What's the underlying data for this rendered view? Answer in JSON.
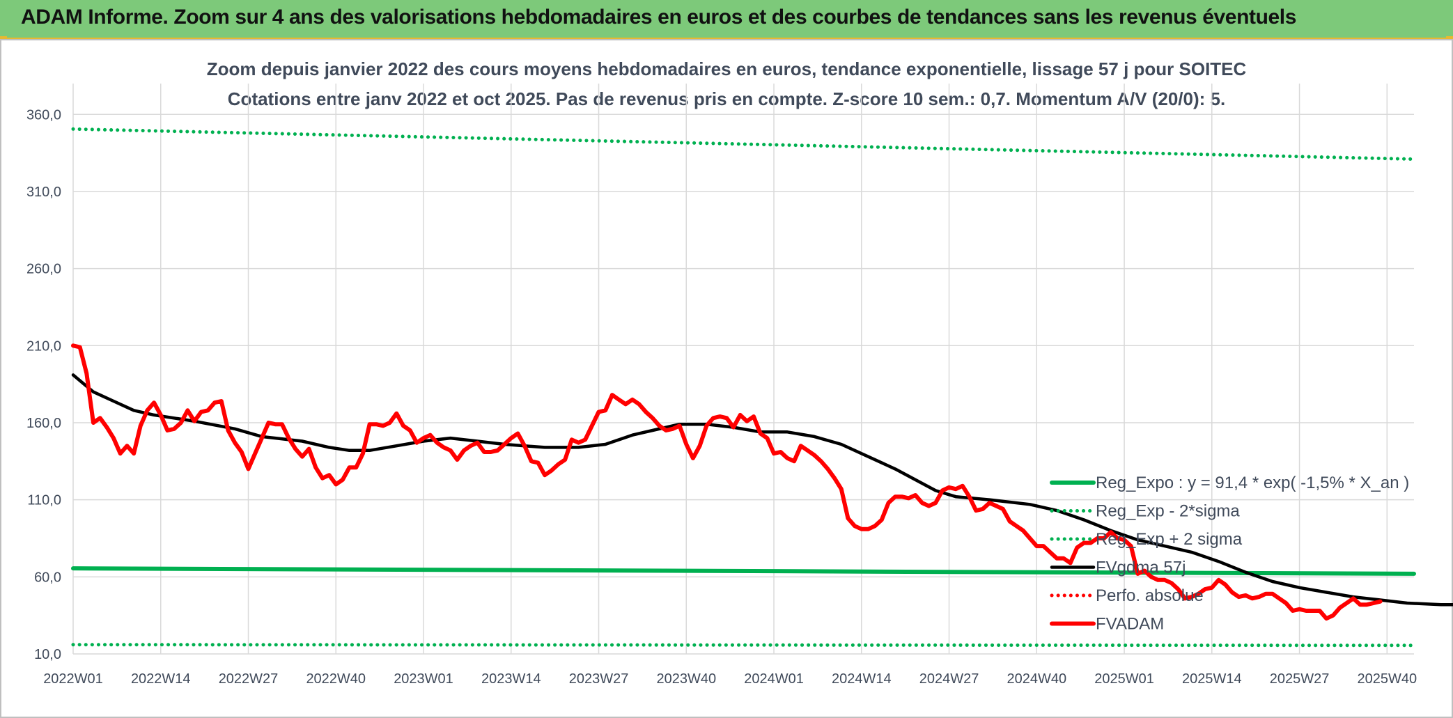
{
  "banner": {
    "title": "ADAM Informe. Zoom sur 4 ans des valorisations hebdomadaires en euros et des courbes de tendances sans les revenus éventuels"
  },
  "colors": {
    "banner": "#7dc97a",
    "accent": "#e8b931",
    "reg_expo": "#00b050",
    "fvgdma": "#000000",
    "fvadam": "#ff0000",
    "perfo": "#ff0000",
    "grid": "#d9d9d9",
    "text": "#404a5a"
  },
  "chart_data": {
    "type": "line",
    "title": "Zoom depuis janvier 2022 des cours moyens hebdomadaires en euros, tendance exponentielle, lissage 57 j pour SOITEC",
    "subtitle": "Cotations entre janv 2022 et oct 2025. Pas de revenus pris en compte. Z-score 10 sem.: 0,7. Momentum A/V (20/0): 5.",
    "xlabel": "",
    "ylabel": "",
    "ylim": [
      10,
      380
    ],
    "y_ticks": [
      "10,0",
      "60,0",
      "110,0",
      "160,0",
      "210,0",
      "260,0",
      "310,0",
      "360,0"
    ],
    "y_tick_values": [
      10,
      60,
      110,
      160,
      210,
      260,
      310,
      360
    ],
    "x_count": 200,
    "x_tick_labels": [
      "2022W01",
      "2022W14",
      "2022W27",
      "2022W40",
      "2023W01",
      "2023W14",
      "2023W27",
      "2023W40",
      "2024W01",
      "2024W14",
      "2024W27",
      "2024W40",
      "2025W01",
      "2025W14",
      "2025W27",
      "2025W40"
    ],
    "x_tick_indices": [
      0,
      13,
      26,
      39,
      52,
      65,
      78,
      91,
      104,
      117,
      130,
      143,
      156,
      169,
      182,
      195
    ],
    "legend_position": "bottom-right",
    "grid": true,
    "series": [
      {
        "name": "Reg_Expo : y = 91,4 * exp( -1,5% *  X_an )",
        "style": "solid-thick",
        "color": "#00b050",
        "points": [
          [
            0,
            65.5
          ],
          [
            199,
            62
          ]
        ]
      },
      {
        "name": "Reg_Exp - 2*sigma",
        "style": "dotted",
        "color": "#00b050",
        "points": [
          [
            0,
            16
          ],
          [
            199,
            15.5
          ]
        ]
      },
      {
        "name": "Reg_Exp + 2 sigma",
        "style": "dotted",
        "color": "#00b050",
        "points": [
          [
            0,
            350.5
          ],
          [
            199,
            331
          ]
        ]
      },
      {
        "name": "FVgdma 57j",
        "style": "solid",
        "color": "#000000",
        "points": [
          [
            0,
            191
          ],
          [
            3,
            180
          ],
          [
            6,
            174
          ],
          [
            9,
            168
          ],
          [
            12,
            165
          ],
          [
            18,
            161
          ],
          [
            24,
            156
          ],
          [
            28,
            151
          ],
          [
            34,
            148
          ],
          [
            38,
            144
          ],
          [
            41,
            142
          ],
          [
            44,
            142
          ],
          [
            48,
            145
          ],
          [
            52,
            148
          ],
          [
            56,
            150
          ],
          [
            60,
            148
          ],
          [
            64,
            146
          ],
          [
            70,
            144
          ],
          [
            75,
            144
          ],
          [
            79,
            146
          ],
          [
            83,
            152
          ],
          [
            86,
            155
          ],
          [
            90,
            159
          ],
          [
            94,
            159
          ],
          [
            98,
            157
          ],
          [
            102,
            154
          ],
          [
            106,
            154
          ],
          [
            110,
            151
          ],
          [
            114,
            146
          ],
          [
            118,
            138
          ],
          [
            122,
            130
          ],
          [
            125,
            123
          ],
          [
            128,
            116
          ],
          [
            131,
            112
          ],
          [
            136,
            110
          ],
          [
            142,
            107
          ],
          [
            146,
            103
          ],
          [
            150,
            97
          ],
          [
            154,
            90
          ],
          [
            158,
            84
          ],
          [
            162,
            80
          ],
          [
            166,
            76
          ],
          [
            170,
            70
          ],
          [
            174,
            63
          ],
          [
            178,
            57
          ],
          [
            182,
            53
          ],
          [
            186,
            50
          ],
          [
            190,
            47
          ],
          [
            194,
            45
          ],
          [
            198,
            43
          ],
          [
            203,
            42
          ],
          [
            206,
            42
          ]
        ]
      },
      {
        "name": "Perfo. absolue",
        "style": "dotted",
        "color": "#ff0000",
        "points": []
      },
      {
        "name": "FVADAM",
        "style": "solid-thick",
        "color": "#ff0000",
        "points": [
          [
            0,
            210
          ],
          [
            1,
            209
          ],
          [
            2,
            192
          ],
          [
            3,
            160
          ],
          [
            4,
            163
          ],
          [
            5,
            157
          ],
          [
            6,
            150
          ],
          [
            7,
            140
          ],
          [
            8,
            145
          ],
          [
            9,
            140
          ],
          [
            10,
            158
          ],
          [
            11,
            168
          ],
          [
            12,
            173
          ],
          [
            13,
            165
          ],
          [
            14,
            155
          ],
          [
            15,
            156
          ],
          [
            16,
            160
          ],
          [
            17,
            168
          ],
          [
            18,
            161
          ],
          [
            19,
            167
          ],
          [
            20,
            168
          ],
          [
            21,
            173
          ],
          [
            22,
            174
          ],
          [
            23,
            155
          ],
          [
            24,
            147
          ],
          [
            25,
            141
          ],
          [
            26,
            130
          ],
          [
            27,
            140
          ],
          [
            28,
            150
          ],
          [
            29,
            160
          ],
          [
            30,
            159
          ],
          [
            31,
            159
          ],
          [
            32,
            150
          ],
          [
            33,
            143
          ],
          [
            34,
            138
          ],
          [
            35,
            143
          ],
          [
            36,
            131
          ],
          [
            37,
            124
          ],
          [
            38,
            126
          ],
          [
            39,
            120
          ],
          [
            40,
            123
          ],
          [
            41,
            131
          ],
          [
            42,
            131
          ],
          [
            43,
            140
          ],
          [
            44,
            159
          ],
          [
            45,
            159
          ],
          [
            46,
            158
          ],
          [
            47,
            160
          ],
          [
            48,
            166
          ],
          [
            49,
            158
          ],
          [
            50,
            155
          ],
          [
            51,
            147
          ],
          [
            52,
            150
          ],
          [
            53,
            152
          ],
          [
            54,
            147
          ],
          [
            55,
            144
          ],
          [
            56,
            142
          ],
          [
            57,
            136
          ],
          [
            58,
            142
          ],
          [
            59,
            145
          ],
          [
            60,
            147
          ],
          [
            61,
            141
          ],
          [
            62,
            141
          ],
          [
            63,
            142
          ],
          [
            64,
            146
          ],
          [
            65,
            150
          ],
          [
            66,
            153
          ],
          [
            67,
            145
          ],
          [
            68,
            135
          ],
          [
            69,
            134
          ],
          [
            70,
            126
          ],
          [
            71,
            129
          ],
          [
            72,
            133
          ],
          [
            73,
            136
          ],
          [
            74,
            149
          ],
          [
            75,
            147
          ],
          [
            76,
            149
          ],
          [
            77,
            158
          ],
          [
            78,
            167
          ],
          [
            79,
            168
          ],
          [
            80,
            178
          ],
          [
            81,
            175
          ],
          [
            82,
            172
          ],
          [
            83,
            175
          ],
          [
            84,
            172
          ],
          [
            85,
            167
          ],
          [
            86,
            163
          ],
          [
            87,
            158
          ],
          [
            88,
            155
          ],
          [
            89,
            156
          ],
          [
            90,
            158
          ],
          [
            91,
            146
          ],
          [
            92,
            137
          ],
          [
            93,
            145
          ],
          [
            94,
            158
          ],
          [
            95,
            163
          ],
          [
            96,
            164
          ],
          [
            97,
            163
          ],
          [
            98,
            157
          ],
          [
            99,
            165
          ],
          [
            100,
            161
          ],
          [
            101,
            164
          ],
          [
            102,
            153
          ],
          [
            103,
            150
          ],
          [
            104,
            140
          ],
          [
            105,
            141
          ],
          [
            106,
            137
          ],
          [
            107,
            135
          ],
          [
            108,
            145
          ],
          [
            109,
            142
          ],
          [
            110,
            139
          ],
          [
            111,
            135
          ],
          [
            112,
            130
          ],
          [
            113,
            124
          ],
          [
            114,
            117
          ],
          [
            115,
            98
          ],
          [
            116,
            93
          ],
          [
            117,
            91
          ],
          [
            118,
            91
          ],
          [
            119,
            93
          ],
          [
            120,
            97
          ],
          [
            121,
            108
          ],
          [
            122,
            112
          ],
          [
            123,
            112
          ],
          [
            124,
            111
          ],
          [
            125,
            113
          ],
          [
            126,
            108
          ],
          [
            127,
            106
          ],
          [
            128,
            108
          ],
          [
            129,
            116
          ],
          [
            130,
            118
          ],
          [
            131,
            117
          ],
          [
            132,
            119
          ],
          [
            133,
            112
          ],
          [
            134,
            103
          ],
          [
            135,
            104
          ],
          [
            136,
            108
          ],
          [
            137,
            106
          ],
          [
            138,
            104
          ],
          [
            139,
            96
          ],
          [
            140,
            93
          ],
          [
            141,
            90
          ],
          [
            142,
            85
          ],
          [
            143,
            80
          ],
          [
            144,
            80
          ],
          [
            145,
            76
          ],
          [
            146,
            72
          ],
          [
            147,
            72
          ],
          [
            148,
            69
          ],
          [
            149,
            79
          ],
          [
            150,
            82
          ],
          [
            151,
            82
          ],
          [
            152,
            85
          ],
          [
            153,
            85
          ],
          [
            154,
            89
          ],
          [
            155,
            85
          ],
          [
            156,
            84
          ],
          [
            157,
            80
          ],
          [
            158,
            62
          ],
          [
            159,
            64
          ],
          [
            160,
            60
          ],
          [
            161,
            58
          ],
          [
            162,
            58
          ],
          [
            163,
            56
          ],
          [
            164,
            52
          ],
          [
            165,
            46
          ],
          [
            166,
            47
          ],
          [
            167,
            49
          ],
          [
            168,
            52
          ],
          [
            169,
            53
          ],
          [
            170,
            58
          ],
          [
            171,
            55
          ],
          [
            172,
            50
          ],
          [
            173,
            47
          ],
          [
            174,
            48
          ],
          [
            175,
            46
          ],
          [
            176,
            47
          ],
          [
            177,
            49
          ],
          [
            178,
            49
          ],
          [
            179,
            46
          ],
          [
            180,
            43
          ],
          [
            181,
            38
          ],
          [
            182,
            39
          ],
          [
            183,
            38
          ],
          [
            184,
            38
          ],
          [
            185,
            38
          ],
          [
            186,
            33
          ],
          [
            187,
            35
          ],
          [
            188,
            40
          ],
          [
            189,
            43
          ],
          [
            190,
            46
          ],
          [
            191,
            42
          ],
          [
            192,
            42
          ],
          [
            193,
            43
          ],
          [
            194,
            44
          ]
        ]
      }
    ]
  }
}
